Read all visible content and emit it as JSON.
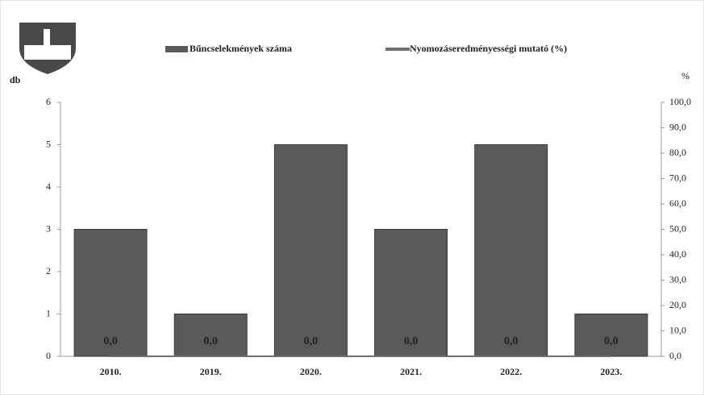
{
  "chart_data": {
    "type": "bar",
    "y_label": "db",
    "y2_label": "%",
    "categories": [
      "2010.",
      "2019.",
      "2020.",
      "2021.",
      "2022.",
      "2023."
    ],
    "series": [
      {
        "name": "Bűncselekmények száma",
        "color": "#5a5a5a",
        "values": [
          3,
          1,
          5,
          3,
          5,
          1
        ]
      },
      {
        "name": "Nyomozáseredményességi mutató (%)",
        "color": "#6e6e6e",
        "type": "line",
        "axis": "y2",
        "values": [
          0,
          0,
          0,
          0,
          0,
          0
        ],
        "value_labels": [
          "0,0",
          "0,0",
          "0,0",
          "0,0",
          "0,0",
          "0,0"
        ]
      }
    ],
    "ylim": [
      0,
      6
    ],
    "yticks": [
      0,
      1,
      2,
      3,
      4,
      5,
      6
    ],
    "y2lim": [
      0,
      100
    ],
    "y2ticks": [
      {
        "value": 0,
        "label": "0,0"
      },
      {
        "value": 10,
        "label": "10,0"
      },
      {
        "value": 20,
        "label": "20,0"
      },
      {
        "value": 30,
        "label": "30,0"
      },
      {
        "value": 40,
        "label": "40,0"
      },
      {
        "value": 50,
        "label": "50,0"
      },
      {
        "value": 60,
        "label": "60,0"
      },
      {
        "value": 70,
        "label": "70,0"
      },
      {
        "value": 80,
        "label": "80,0"
      },
      {
        "value": 90,
        "label": "90,0"
      },
      {
        "value": 100,
        "label": "100,0"
      }
    ]
  }
}
